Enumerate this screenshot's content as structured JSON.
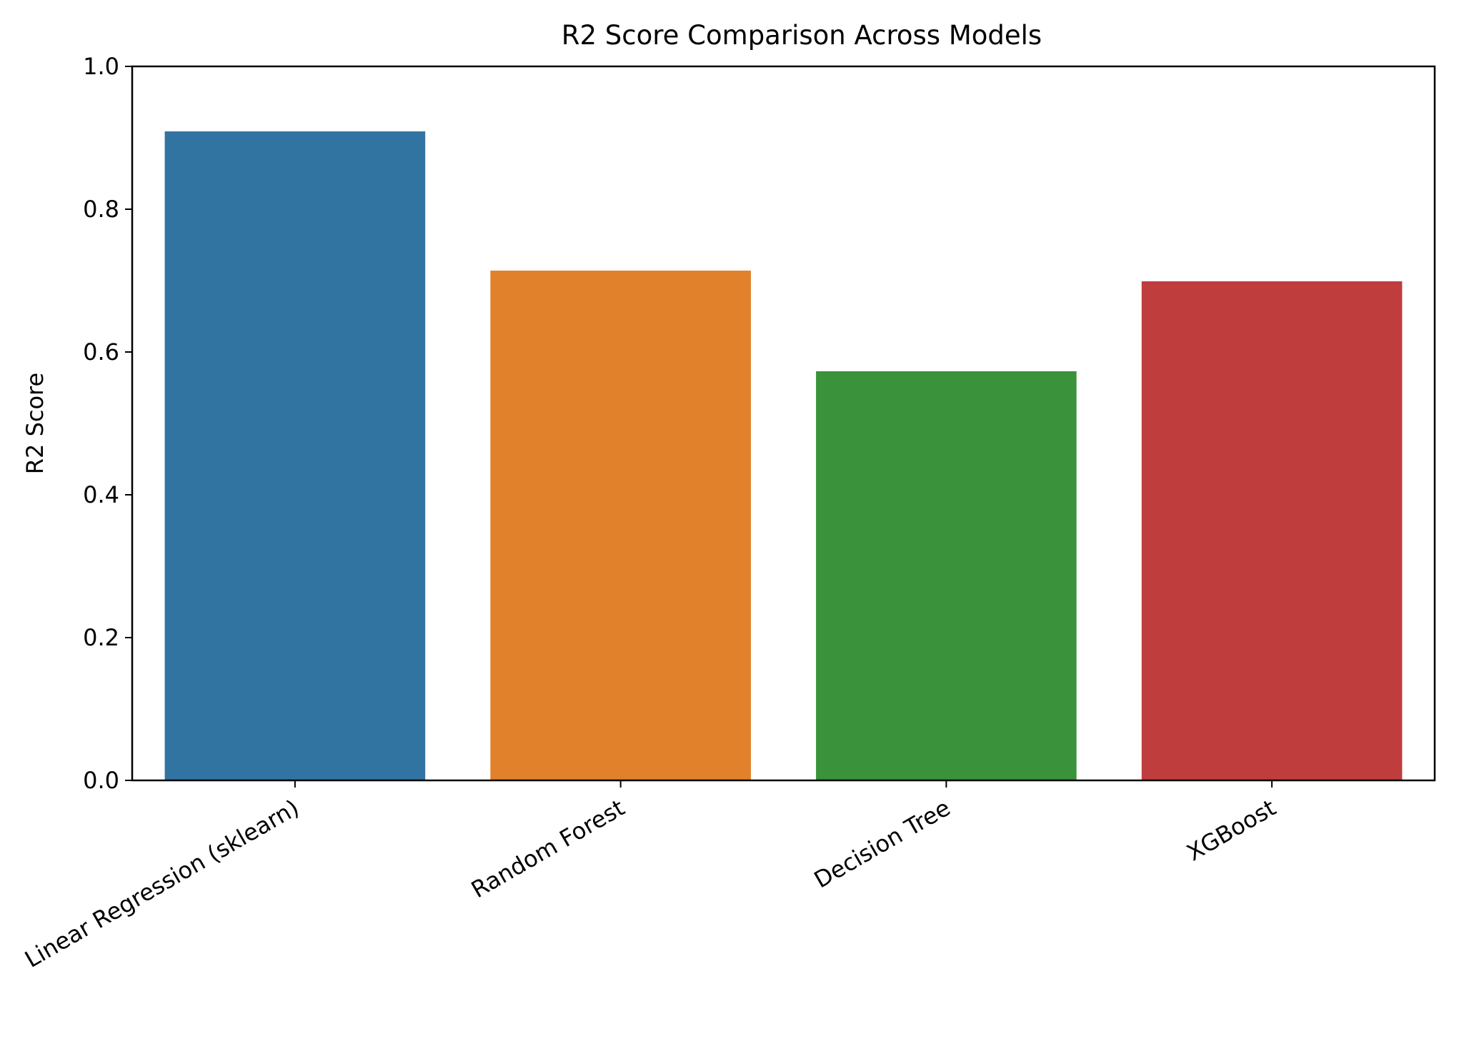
{
  "chart_data": {
    "type": "bar",
    "title": "R2 Score Comparison Across Models",
    "xlabel": "",
    "ylabel": "R2 Score",
    "categories": [
      "Linear Regression (sklearn)",
      "Random Forest",
      "Decision Tree",
      "XGBoost"
    ],
    "values": [
      0.909,
      0.714,
      0.573,
      0.699
    ],
    "colors": [
      "#3274a1",
      "#e1812c",
      "#3a923a",
      "#c03d3e"
    ],
    "ylim": [
      0,
      1.0
    ],
    "yticks": [
      "0.0",
      "0.2",
      "0.4",
      "0.6",
      "0.8",
      "1.0"
    ],
    "grid": false,
    "legend": "none"
  }
}
